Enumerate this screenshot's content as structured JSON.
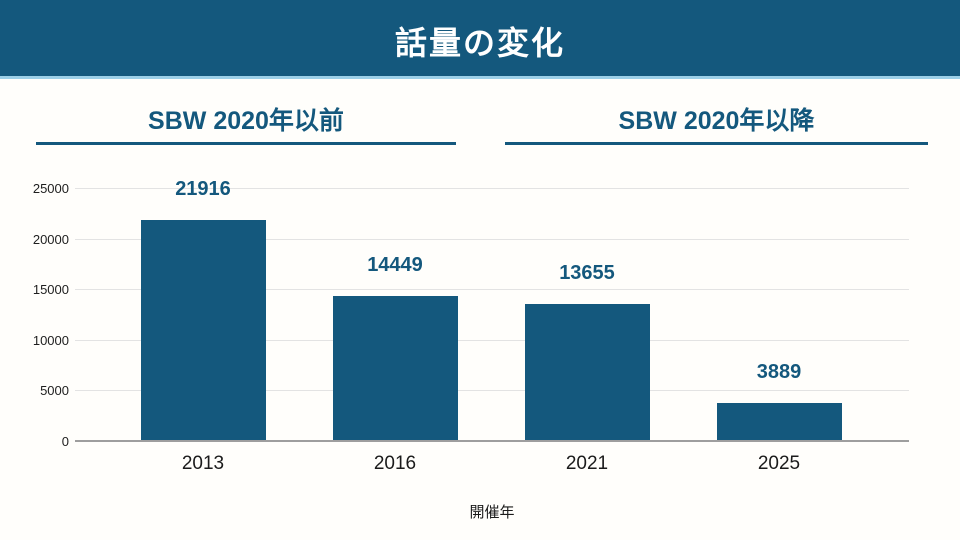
{
  "title": "話量の変化",
  "colors": {
    "accent": "#14587d",
    "banner-underline": "#9ccfe7",
    "gridline": "#e3e3e3",
    "axis-line": "#9e9e9e",
    "text": "#1e1e1e",
    "background": "#fffefb"
  },
  "sections": [
    {
      "label": "SBW 2020年以前"
    },
    {
      "label": "SBW 2020年以降"
    }
  ],
  "chart_data": {
    "type": "bar",
    "title": "話量の変化",
    "categories": [
      "2013",
      "2016",
      "2021",
      "2025"
    ],
    "values": [
      21916,
      14449,
      13655,
      3889
    ],
    "xlabel": "開催年",
    "ylabel": "",
    "ylim": [
      0,
      25000
    ],
    "yticks": [
      0,
      5000,
      10000,
      15000,
      20000,
      25000
    ],
    "grid": true,
    "legend": false,
    "bar_color": "#14587d",
    "group_labels": [
      {
        "label": "SBW 2020年以前",
        "categories": [
          "2013",
          "2016"
        ]
      },
      {
        "label": "SBW 2020年以降",
        "categories": [
          "2021",
          "2025"
        ]
      }
    ]
  }
}
